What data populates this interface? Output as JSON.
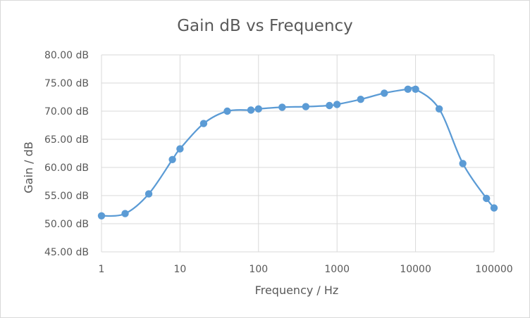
{
  "chart_data": {
    "type": "scatter",
    "title": "Gain dB vs Frequency",
    "xlabel": "Frequency / Hz",
    "ylabel": "Gain / dB",
    "x_scale": "log",
    "xlim": [
      1,
      100000
    ],
    "ylim": [
      45,
      80
    ],
    "x_ticks": [
      1,
      10,
      100,
      1000,
      10000,
      100000
    ],
    "x_tick_labels": [
      "1",
      "10",
      "100",
      "1000",
      "10000",
      "100000"
    ],
    "y_ticks": [
      45,
      50,
      55,
      60,
      65,
      70,
      75,
      80
    ],
    "y_tick_labels": [
      "45.00 dB",
      "50.00 dB",
      "55.00 dB",
      "60.00 dB",
      "65.00 dB",
      "70.00 dB",
      "75.00 dB",
      "80.00 dB"
    ],
    "grid": true,
    "smooth_line": true,
    "series_color": "#5b9bd5",
    "series": [
      {
        "x": [
          1,
          2,
          4,
          8,
          10,
          20,
          40,
          80,
          100,
          200,
          400,
          800,
          1000,
          2000,
          4000,
          8000,
          10000,
          20000,
          40000,
          80000,
          100000
        ],
        "values": [
          51.4,
          51.8,
          55.3,
          61.4,
          63.3,
          67.8,
          70.0,
          70.2,
          70.4,
          70.7,
          70.8,
          71.0,
          71.2,
          72.1,
          73.2,
          73.9,
          73.9,
          70.4,
          60.7,
          54.5,
          52.8
        ]
      }
    ]
  }
}
